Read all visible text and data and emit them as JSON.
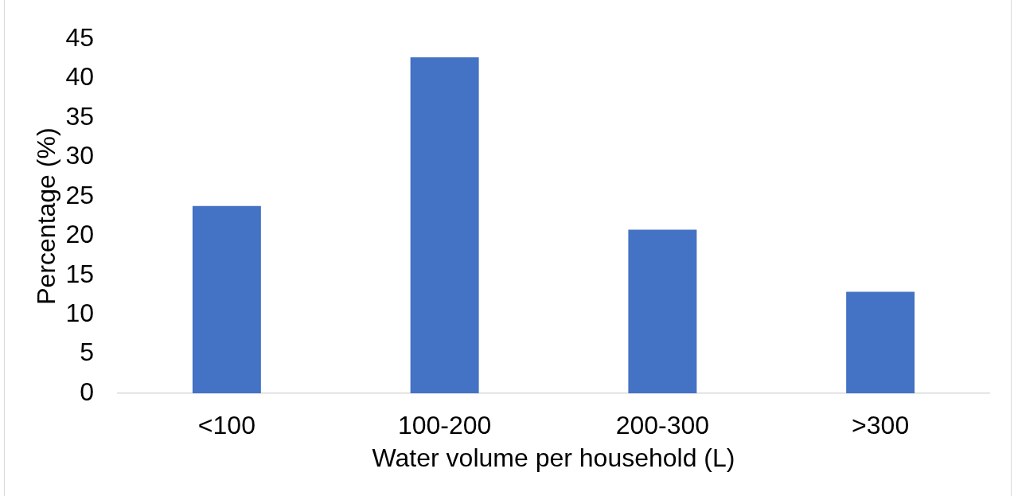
{
  "chart_data": {
    "type": "bar",
    "xlabel": "Water volume per household (L)",
    "ylabel": "Percentage (%)",
    "categories": [
      "<100",
      "100-200",
      "200-300",
      ">300"
    ],
    "values": [
      23.8,
      42.7,
      20.8,
      12.9
    ],
    "color": "#4472c4",
    "ylim": [
      0,
      45
    ],
    "yticks": [
      0,
      5,
      10,
      15,
      20,
      25,
      30,
      35,
      40,
      45
    ],
    "grid": false,
    "legend": false
  }
}
